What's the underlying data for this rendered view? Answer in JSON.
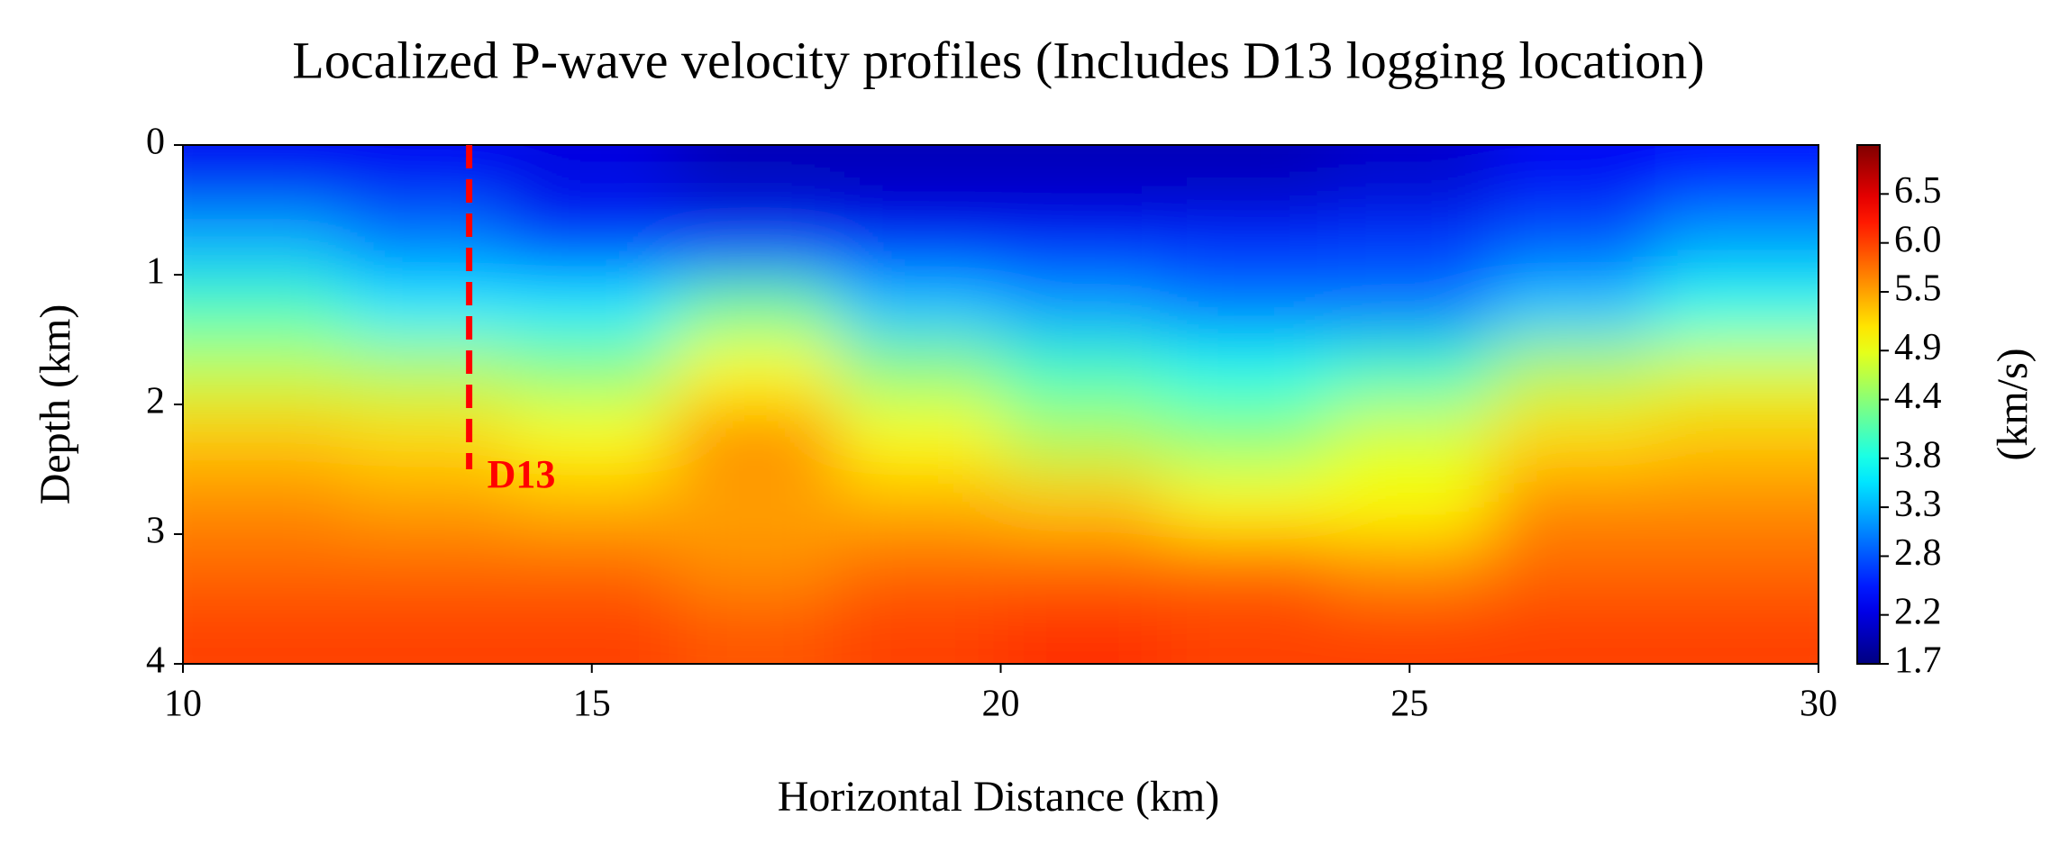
{
  "chart_data": {
    "type": "heatmap",
    "title": "Localized P-wave velocity profiles (Includes D13 logging location)",
    "x_label": "Horizontal Distance (km)",
    "y_label": "Depth (km)",
    "colorbar_label": "(km/s)",
    "colormap": "jet",
    "x_edges": [
      10,
      12,
      14,
      16,
      18,
      20,
      22,
      24,
      26,
      28,
      30
    ],
    "y_edges": [
      0,
      0.5,
      1,
      1.5,
      2,
      2.5,
      3,
      3.5,
      4
    ],
    "values": [
      [
        2.3,
        2.3,
        2.2,
        2.0,
        2.0,
        2.0,
        2.0,
        2.1,
        2.3,
        2.4
      ],
      [
        3.3,
        3.0,
        2.6,
        2.6,
        2.4,
        2.4,
        2.5,
        2.6,
        2.8,
        3.2
      ],
      [
        4.0,
        3.6,
        3.6,
        4.2,
        3.4,
        3.2,
        3.0,
        3.0,
        3.4,
        3.8
      ],
      [
        4.7,
        4.6,
        4.4,
        5.0,
        4.4,
        4.0,
        3.8,
        4.0,
        4.6,
        4.8
      ],
      [
        5.3,
        5.2,
        5.0,
        5.6,
        5.0,
        4.6,
        4.4,
        4.8,
        5.2,
        5.3
      ],
      [
        5.6,
        5.5,
        5.4,
        5.5,
        5.4,
        5.3,
        5.0,
        5.0,
        5.6,
        5.6
      ],
      [
        5.8,
        5.8,
        5.8,
        5.6,
        5.8,
        5.8,
        5.8,
        5.6,
        5.8,
        5.8
      ],
      [
        6.0,
        6.0,
        6.0,
        5.9,
        6.0,
        6.1,
        6.0,
        6.0,
        6.0,
        6.0
      ]
    ],
    "xlim": [
      10,
      30
    ],
    "xticks": [
      10,
      15,
      20,
      25,
      30
    ],
    "ylim": [
      0,
      4
    ],
    "y_inverted": true,
    "yticks": [
      0,
      1,
      2,
      3,
      4
    ],
    "clim": [
      1.7,
      7.0
    ],
    "cticks": [
      1.7,
      2.2,
      2.8,
      3.3,
      3.8,
      4.4,
      4.9,
      5.5,
      {
        "value": 6,
        "label": "6.0"
      },
      6.5
    ],
    "annotation": {
      "text": "D13",
      "x": 13.5,
      "depth": [
        0,
        2.5
      ],
      "color": "#ff0000"
    }
  }
}
